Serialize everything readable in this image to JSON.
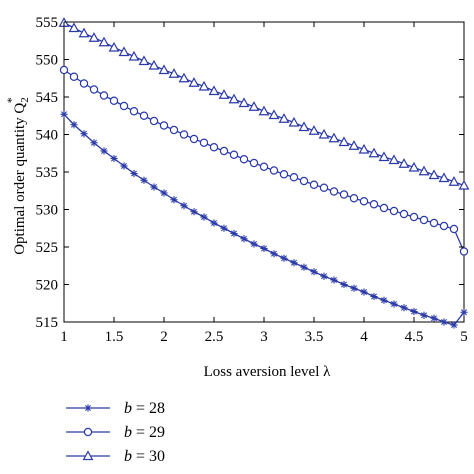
{
  "chart_data": {
    "type": "line",
    "xlabel": "Loss aversion level λ",
    "ylabel": "Optimal order quantity Q",
    "ylabel_sub": "2",
    "ylabel_sup": "*",
    "xlim": [
      1,
      5
    ],
    "ylim": [
      515,
      555
    ],
    "xticks": [
      "1",
      "1.5",
      "2",
      "2.5",
      "3",
      "3.5",
      "4",
      "4.5",
      "5"
    ],
    "yticks": [
      "515",
      "520",
      "525",
      "530",
      "535",
      "540",
      "545",
      "550",
      "555"
    ],
    "grid": false,
    "legend_position": "bottom-left",
    "line_color": "#2b3aa8",
    "x": [
      1.0,
      1.1,
      1.2,
      1.3,
      1.4,
      1.5,
      1.6,
      1.7,
      1.8,
      1.9,
      2.0,
      2.1,
      2.2,
      2.3,
      2.4,
      2.5,
      2.6,
      2.7,
      2.8,
      2.9,
      3.0,
      3.1,
      3.2,
      3.3,
      3.4,
      3.5,
      3.6,
      3.7,
      3.8,
      3.9,
      4.0,
      4.1,
      4.2,
      4.3,
      4.4,
      4.5,
      4.6,
      4.7,
      4.8,
      4.9,
      5.0
    ],
    "series": [
      {
        "name": "b = 28",
        "marker": "star",
        "values": [
          542.7,
          541.3,
          540.1,
          538.9,
          537.8,
          536.8,
          535.8,
          534.8,
          533.9,
          533.0,
          532.2,
          531.3,
          530.5,
          529.7,
          529.0,
          528.2,
          527.5,
          526.8,
          526.1,
          525.4,
          524.8,
          524.1,
          523.5,
          522.9,
          522.3,
          521.7,
          521.1,
          520.6,
          520.0,
          519.5,
          519.0,
          518.4,
          517.9,
          517.4,
          516.9,
          516.4,
          515.9,
          515.5,
          515.0,
          514.6,
          516.3
        ]
      },
      {
        "name": "b = 29",
        "marker": "circle",
        "values": [
          548.6,
          547.7,
          546.8,
          546.0,
          545.2,
          544.5,
          543.8,
          543.1,
          542.5,
          541.8,
          541.2,
          540.6,
          540.0,
          539.4,
          538.9,
          538.3,
          537.8,
          537.3,
          536.7,
          536.2,
          535.7,
          535.2,
          534.7,
          534.3,
          533.8,
          533.3,
          532.9,
          532.4,
          532.0,
          531.5,
          531.1,
          530.7,
          530.2,
          529.8,
          529.4,
          529.0,
          528.6,
          528.2,
          527.8,
          527.4,
          524.4
        ]
      },
      {
        "name": "b = 30",
        "marker": "triangle",
        "values": [
          554.9,
          554.2,
          553.5,
          552.9,
          552.3,
          551.6,
          551.0,
          550.4,
          549.8,
          549.2,
          548.6,
          548.1,
          547.5,
          546.9,
          546.4,
          545.8,
          545.3,
          544.7,
          544.2,
          543.7,
          543.1,
          542.6,
          542.1,
          541.6,
          541.0,
          540.5,
          540.0,
          539.5,
          539.0,
          538.5,
          538.0,
          537.5,
          537.0,
          536.6,
          536.1,
          535.6,
          535.1,
          534.6,
          534.2,
          533.7,
          533.2
        ]
      }
    ],
    "legend": [
      {
        "var": "b",
        "rest": " = 28"
      },
      {
        "var": "b",
        "rest": " = 29"
      },
      {
        "var": "b",
        "rest": " = 30"
      }
    ]
  }
}
